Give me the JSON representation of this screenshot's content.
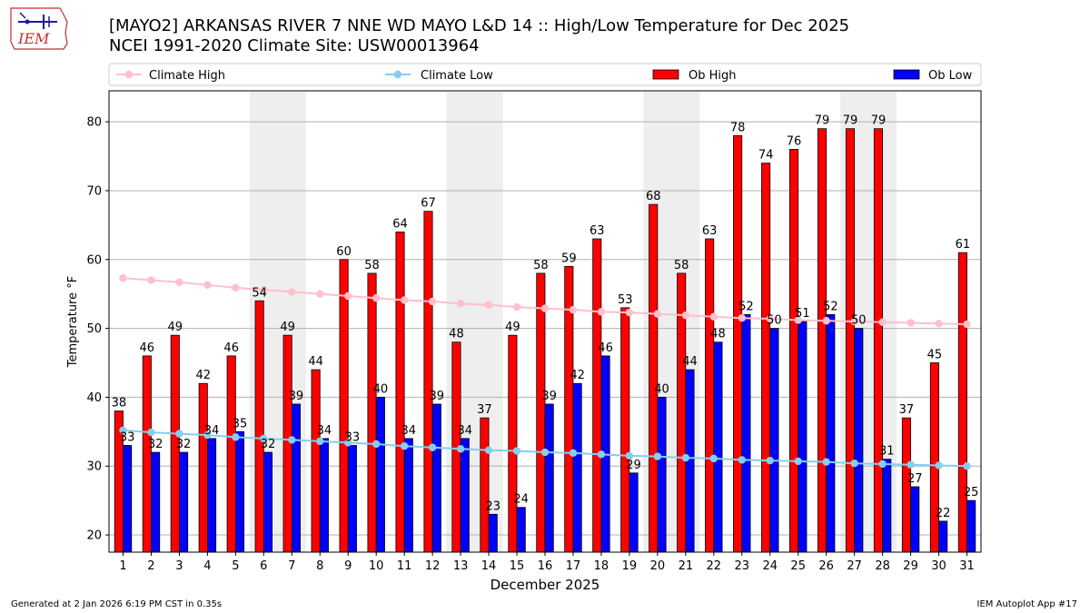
{
  "logo": {
    "text": "IEM",
    "icon": "iowa-state-outline-logo"
  },
  "title": {
    "line1": "[MAYO2] ARKANSAS RIVER 7 NNE WD MAYO L&D 14 :: High/Low Temperature for Dec 2025",
    "line2": "NCEI 1991-2020 Climate Site: USW00013964"
  },
  "footer": {
    "left": "Generated at 2 Jan 2026 6:19 PM CST in 0.35s",
    "right": "IEM Autoplot App #17"
  },
  "chart_data": {
    "type": "bar",
    "xlabel": "December 2025",
    "ylabel": "Temperature °F",
    "ylim": [
      17.5,
      84.5
    ],
    "yticks": [
      20,
      30,
      40,
      50,
      60,
      70,
      80
    ],
    "grid": true,
    "legend_position": "top",
    "weekend_shading": [
      [
        6,
        7
      ],
      [
        13,
        14
      ],
      [
        20,
        21
      ],
      [
        27,
        28
      ]
    ],
    "categories": [
      "1",
      "2",
      "3",
      "4",
      "5",
      "6",
      "7",
      "8",
      "9",
      "10",
      "11",
      "12",
      "13",
      "14",
      "15",
      "16",
      "17",
      "18",
      "19",
      "20",
      "21",
      "22",
      "23",
      "24",
      "25",
      "26",
      "27",
      "28",
      "29",
      "30",
      "31"
    ],
    "series": [
      {
        "name": "Climate High",
        "kind": "line",
        "color": "#ffc0cb",
        "values": [
          57.3,
          57.0,
          56.7,
          56.3,
          55.9,
          55.6,
          55.3,
          55.0,
          54.7,
          54.4,
          54.1,
          53.9,
          53.6,
          53.4,
          53.1,
          52.9,
          52.7,
          52.4,
          52.3,
          52.1,
          51.9,
          51.7,
          51.5,
          51.4,
          51.2,
          51.1,
          51.0,
          50.9,
          50.8,
          50.7,
          50.6
        ]
      },
      {
        "name": "Climate Low",
        "kind": "line",
        "color": "#87ceeb",
        "values": [
          35.2,
          34.9,
          34.7,
          34.5,
          34.2,
          34.0,
          33.8,
          33.6,
          33.4,
          33.2,
          32.9,
          32.7,
          32.5,
          32.3,
          32.2,
          32.0,
          31.9,
          31.7,
          31.5,
          31.4,
          31.2,
          31.1,
          30.9,
          30.8,
          30.7,
          30.6,
          30.4,
          30.3,
          30.2,
          30.1,
          30.0
        ]
      },
      {
        "name": "Ob High",
        "kind": "bar",
        "color": "#ff0000",
        "values": [
          38,
          46,
          49,
          42,
          46,
          54,
          49,
          44,
          60,
          58,
          64,
          67,
          48,
          37,
          49,
          58,
          59,
          63,
          53,
          68,
          58,
          63,
          78,
          74,
          76,
          79,
          79,
          79,
          37,
          45,
          61
        ]
      },
      {
        "name": "Ob Low",
        "kind": "bar",
        "color": "#0000ff",
        "values": [
          33,
          32,
          32,
          34,
          35,
          32,
          39,
          34,
          33,
          40,
          34,
          39,
          34,
          23,
          24,
          39,
          42,
          46,
          29,
          40,
          44,
          48,
          52,
          50,
          51,
          52,
          50,
          31,
          27,
          22,
          25
        ]
      }
    ]
  }
}
